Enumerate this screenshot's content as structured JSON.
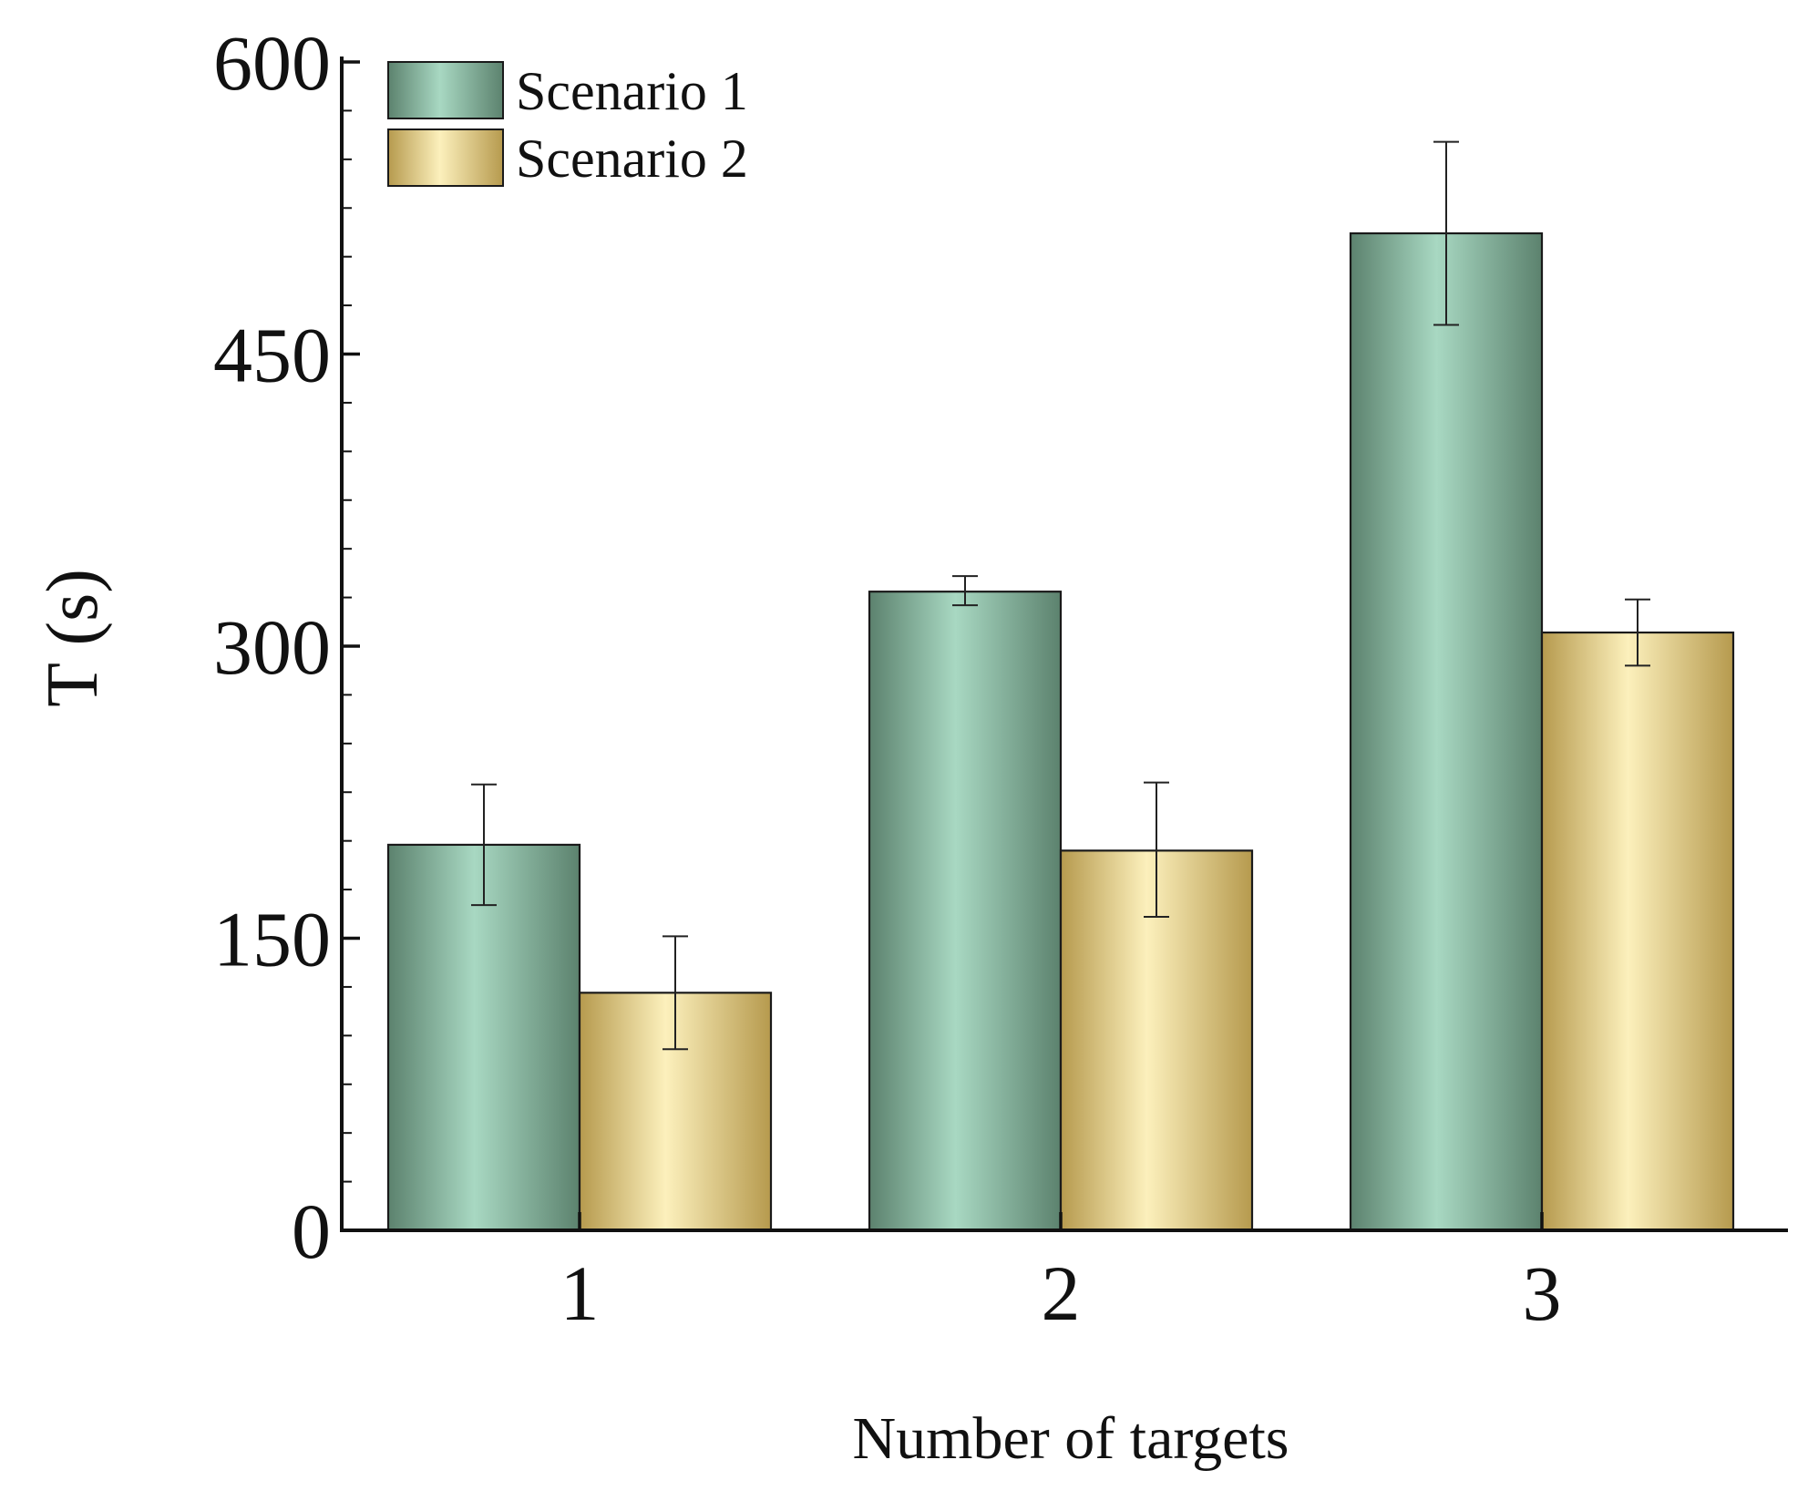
{
  "chart_data": {
    "type": "bar",
    "title": "",
    "xlabel": "Number of targets",
    "ylabel": "T (s)",
    "categories": [
      "1",
      "2",
      "3"
    ],
    "ylim": [
      0,
      600
    ],
    "yticks": [
      0,
      150,
      300,
      450,
      600
    ],
    "y_minor_step": 25,
    "grid": false,
    "legend_position": "top-left",
    "series": [
      {
        "name": "Scenario 1",
        "values": [
          198,
          328,
          512
        ],
        "error_low": [
          167,
          321,
          465
        ],
        "error_high": [
          229,
          336,
          559
        ],
        "color_dark": "#5c826e",
        "color_light": "#a8d8c2"
      },
      {
        "name": "Scenario 2",
        "values": [
          122,
          195,
          307
        ],
        "error_low": [
          93,
          161,
          290
        ],
        "error_high": [
          151,
          230,
          324
        ],
        "color_dark": "#b69a4e",
        "color_light": "#fcf0bc"
      }
    ]
  }
}
